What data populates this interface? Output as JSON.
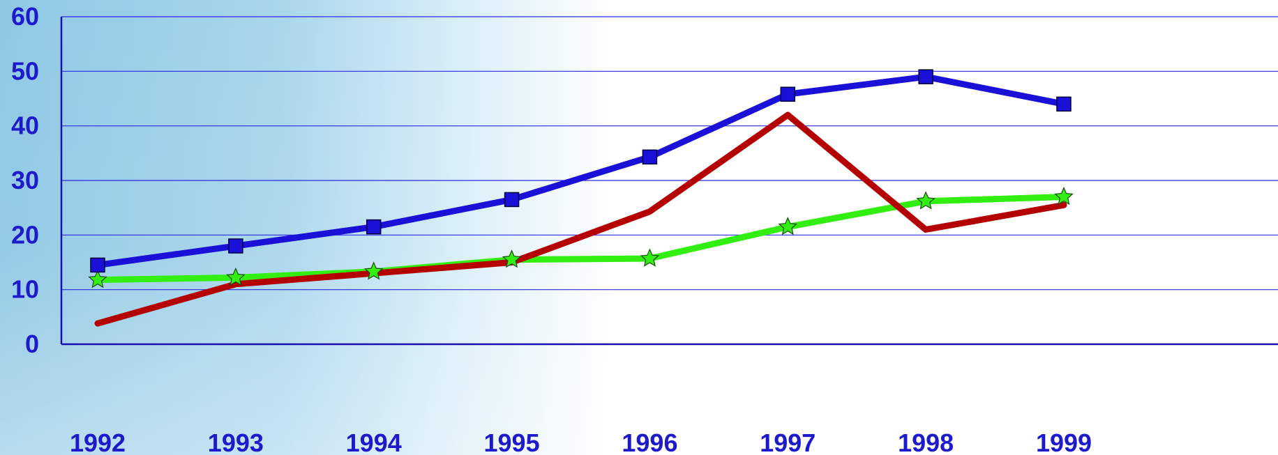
{
  "chart_data": {
    "type": "line",
    "title": "",
    "xlabel": "",
    "ylabel": "",
    "categories": [
      "1992",
      "1993",
      "1994",
      "1995",
      "1996",
      "1997",
      "1998",
      "1999"
    ],
    "yticks": [
      "0",
      "10",
      "20",
      "30",
      "40",
      "50",
      "60"
    ],
    "ylim": [
      0,
      60
    ],
    "grid": true,
    "legend": "none",
    "series": [
      {
        "color": "#1a10d8",
        "marker": "square",
        "values": [
          14.5,
          18,
          21.5,
          26.5,
          34.3,
          45.8,
          49,
          44
        ]
      },
      {
        "color": "#b40000",
        "marker": "none",
        "values": [
          3.8,
          11,
          13,
          15,
          24.3,
          42,
          21,
          25.5
        ]
      },
      {
        "color": "#33ee11",
        "marker": "star",
        "values": [
          11.8,
          12.2,
          13.3,
          15.5,
          15.7,
          21.5,
          26.2,
          27
        ]
      }
    ],
    "colors": {
      "axis": "#1a10b0",
      "gridline": "#2a2adf",
      "tick_label": "#1d1acb",
      "background_fade": "#8fc8e4"
    }
  }
}
